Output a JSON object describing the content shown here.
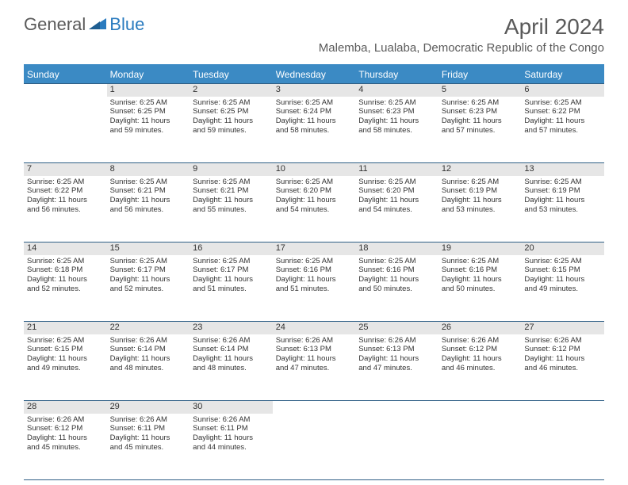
{
  "logo": {
    "general": "General",
    "blue": "Blue"
  },
  "title": "April 2024",
  "location": "Malemba, Lualaba, Democratic Republic of the Congo",
  "colors": {
    "header_bg": "#3b8ac4",
    "header_text": "#ffffff",
    "rule": "#2f5f86",
    "daynum_bg": "#e6e6e6",
    "text": "#333333",
    "logo_gray": "#5a5a5a",
    "logo_blue": "#2a7bbf"
  },
  "weekdays": [
    "Sunday",
    "Monday",
    "Tuesday",
    "Wednesday",
    "Thursday",
    "Friday",
    "Saturday"
  ],
  "weeks": [
    {
      "nums": [
        "",
        "1",
        "2",
        "3",
        "4",
        "5",
        "6"
      ],
      "cells": [
        null,
        {
          "sunrise": "Sunrise: 6:25 AM",
          "sunset": "Sunset: 6:25 PM",
          "d1": "Daylight: 11 hours",
          "d2": "and 59 minutes."
        },
        {
          "sunrise": "Sunrise: 6:25 AM",
          "sunset": "Sunset: 6:25 PM",
          "d1": "Daylight: 11 hours",
          "d2": "and 59 minutes."
        },
        {
          "sunrise": "Sunrise: 6:25 AM",
          "sunset": "Sunset: 6:24 PM",
          "d1": "Daylight: 11 hours",
          "d2": "and 58 minutes."
        },
        {
          "sunrise": "Sunrise: 6:25 AM",
          "sunset": "Sunset: 6:23 PM",
          "d1": "Daylight: 11 hours",
          "d2": "and 58 minutes."
        },
        {
          "sunrise": "Sunrise: 6:25 AM",
          "sunset": "Sunset: 6:23 PM",
          "d1": "Daylight: 11 hours",
          "d2": "and 57 minutes."
        },
        {
          "sunrise": "Sunrise: 6:25 AM",
          "sunset": "Sunset: 6:22 PM",
          "d1": "Daylight: 11 hours",
          "d2": "and 57 minutes."
        }
      ]
    },
    {
      "nums": [
        "7",
        "8",
        "9",
        "10",
        "11",
        "12",
        "13"
      ],
      "cells": [
        {
          "sunrise": "Sunrise: 6:25 AM",
          "sunset": "Sunset: 6:22 PM",
          "d1": "Daylight: 11 hours",
          "d2": "and 56 minutes."
        },
        {
          "sunrise": "Sunrise: 6:25 AM",
          "sunset": "Sunset: 6:21 PM",
          "d1": "Daylight: 11 hours",
          "d2": "and 56 minutes."
        },
        {
          "sunrise": "Sunrise: 6:25 AM",
          "sunset": "Sunset: 6:21 PM",
          "d1": "Daylight: 11 hours",
          "d2": "and 55 minutes."
        },
        {
          "sunrise": "Sunrise: 6:25 AM",
          "sunset": "Sunset: 6:20 PM",
          "d1": "Daylight: 11 hours",
          "d2": "and 54 minutes."
        },
        {
          "sunrise": "Sunrise: 6:25 AM",
          "sunset": "Sunset: 6:20 PM",
          "d1": "Daylight: 11 hours",
          "d2": "and 54 minutes."
        },
        {
          "sunrise": "Sunrise: 6:25 AM",
          "sunset": "Sunset: 6:19 PM",
          "d1": "Daylight: 11 hours",
          "d2": "and 53 minutes."
        },
        {
          "sunrise": "Sunrise: 6:25 AM",
          "sunset": "Sunset: 6:19 PM",
          "d1": "Daylight: 11 hours",
          "d2": "and 53 minutes."
        }
      ]
    },
    {
      "nums": [
        "14",
        "15",
        "16",
        "17",
        "18",
        "19",
        "20"
      ],
      "cells": [
        {
          "sunrise": "Sunrise: 6:25 AM",
          "sunset": "Sunset: 6:18 PM",
          "d1": "Daylight: 11 hours",
          "d2": "and 52 minutes."
        },
        {
          "sunrise": "Sunrise: 6:25 AM",
          "sunset": "Sunset: 6:17 PM",
          "d1": "Daylight: 11 hours",
          "d2": "and 52 minutes."
        },
        {
          "sunrise": "Sunrise: 6:25 AM",
          "sunset": "Sunset: 6:17 PM",
          "d1": "Daylight: 11 hours",
          "d2": "and 51 minutes."
        },
        {
          "sunrise": "Sunrise: 6:25 AM",
          "sunset": "Sunset: 6:16 PM",
          "d1": "Daylight: 11 hours",
          "d2": "and 51 minutes."
        },
        {
          "sunrise": "Sunrise: 6:25 AM",
          "sunset": "Sunset: 6:16 PM",
          "d1": "Daylight: 11 hours",
          "d2": "and 50 minutes."
        },
        {
          "sunrise": "Sunrise: 6:25 AM",
          "sunset": "Sunset: 6:16 PM",
          "d1": "Daylight: 11 hours",
          "d2": "and 50 minutes."
        },
        {
          "sunrise": "Sunrise: 6:25 AM",
          "sunset": "Sunset: 6:15 PM",
          "d1": "Daylight: 11 hours",
          "d2": "and 49 minutes."
        }
      ]
    },
    {
      "nums": [
        "21",
        "22",
        "23",
        "24",
        "25",
        "26",
        "27"
      ],
      "cells": [
        {
          "sunrise": "Sunrise: 6:25 AM",
          "sunset": "Sunset: 6:15 PM",
          "d1": "Daylight: 11 hours",
          "d2": "and 49 minutes."
        },
        {
          "sunrise": "Sunrise: 6:26 AM",
          "sunset": "Sunset: 6:14 PM",
          "d1": "Daylight: 11 hours",
          "d2": "and 48 minutes."
        },
        {
          "sunrise": "Sunrise: 6:26 AM",
          "sunset": "Sunset: 6:14 PM",
          "d1": "Daylight: 11 hours",
          "d2": "and 48 minutes."
        },
        {
          "sunrise": "Sunrise: 6:26 AM",
          "sunset": "Sunset: 6:13 PM",
          "d1": "Daylight: 11 hours",
          "d2": "and 47 minutes."
        },
        {
          "sunrise": "Sunrise: 6:26 AM",
          "sunset": "Sunset: 6:13 PM",
          "d1": "Daylight: 11 hours",
          "d2": "and 47 minutes."
        },
        {
          "sunrise": "Sunrise: 6:26 AM",
          "sunset": "Sunset: 6:12 PM",
          "d1": "Daylight: 11 hours",
          "d2": "and 46 minutes."
        },
        {
          "sunrise": "Sunrise: 6:26 AM",
          "sunset": "Sunset: 6:12 PM",
          "d1": "Daylight: 11 hours",
          "d2": "and 46 minutes."
        }
      ]
    },
    {
      "nums": [
        "28",
        "29",
        "30",
        "",
        "",
        "",
        ""
      ],
      "cells": [
        {
          "sunrise": "Sunrise: 6:26 AM",
          "sunset": "Sunset: 6:12 PM",
          "d1": "Daylight: 11 hours",
          "d2": "and 45 minutes."
        },
        {
          "sunrise": "Sunrise: 6:26 AM",
          "sunset": "Sunset: 6:11 PM",
          "d1": "Daylight: 11 hours",
          "d2": "and 45 minutes."
        },
        {
          "sunrise": "Sunrise: 6:26 AM",
          "sunset": "Sunset: 6:11 PM",
          "d1": "Daylight: 11 hours",
          "d2": "and 44 minutes."
        },
        null,
        null,
        null,
        null
      ]
    }
  ]
}
